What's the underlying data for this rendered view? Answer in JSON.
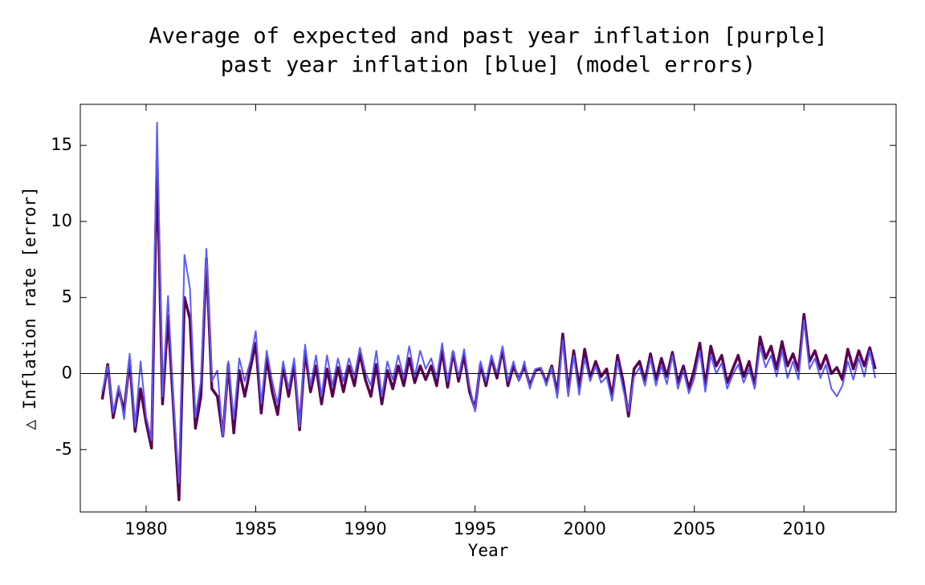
{
  "chart_data": {
    "type": "line",
    "title": "Average of expected and past year inflation [purple]",
    "subtitle": "past year inflation [blue] (model errors)",
    "x_label": "Year",
    "y_label": "△ Inflation rate [error]",
    "xlim": [
      1977,
      2014.2
    ],
    "ylim": [
      -9.1,
      17.7
    ],
    "xticks": [
      1980,
      1985,
      1990,
      1995,
      2000,
      2005,
      2010
    ],
    "yticks": [
      -5,
      0,
      5,
      10,
      15
    ],
    "zero_line": true,
    "x": [
      1978,
      1978.25,
      1978.5,
      1978.75,
      1979,
      1979.25,
      1979.5,
      1979.75,
      1980,
      1980.25,
      1980.5,
      1980.75,
      1981,
      1981.25,
      1981.5,
      1981.75,
      1982,
      1982.25,
      1982.5,
      1982.75,
      1983,
      1983.25,
      1983.5,
      1983.75,
      1984,
      1984.25,
      1984.5,
      1984.75,
      1985,
      1985.25,
      1985.5,
      1985.75,
      1986,
      1986.25,
      1986.5,
      1986.75,
      1987,
      1987.25,
      1987.5,
      1987.75,
      1988,
      1988.25,
      1988.5,
      1988.75,
      1989,
      1989.25,
      1989.5,
      1989.75,
      1990,
      1990.25,
      1990.5,
      1990.75,
      1991,
      1991.25,
      1991.5,
      1991.75,
      1992,
      1992.25,
      1992.5,
      1992.75,
      1993,
      1993.25,
      1993.5,
      1993.75,
      1994,
      1994.25,
      1994.5,
      1994.75,
      1995,
      1995.25,
      1995.5,
      1995.75,
      1996,
      1996.25,
      1996.5,
      1996.75,
      1997,
      1997.25,
      1997.5,
      1997.75,
      1998,
      1998.25,
      1998.5,
      1998.75,
      1999,
      1999.25,
      1999.5,
      1999.75,
      2000,
      2000.25,
      2000.5,
      2000.75,
      2001,
      2001.25,
      2001.5,
      2001.75,
      2002,
      2002.25,
      2002.5,
      2002.75,
      2003,
      2003.25,
      2003.5,
      2003.75,
      2004,
      2004.25,
      2004.5,
      2004.75,
      2005,
      2005.25,
      2005.5,
      2005.75,
      2006,
      2006.25,
      2006.5,
      2006.75,
      2007,
      2007.25,
      2007.5,
      2007.75,
      2008,
      2008.25,
      2008.5,
      2008.75,
      2009,
      2009.25,
      2009.5,
      2009.75,
      2010,
      2010.25,
      2010.5,
      2010.75,
      2011,
      2011.25,
      2011.5,
      2011.75,
      2012,
      2012.25,
      2012.5,
      2012.75,
      2013,
      2013.25
    ],
    "series": [
      {
        "color": "#5a0050",
        "width": 3.5,
        "values": [
          -1.7,
          0.6,
          -2.9,
          -1.0,
          -2.5,
          0.9,
          -3.8,
          -1.0,
          -3.2,
          -4.9,
          14.0,
          -2.0,
          3.8,
          -2.3,
          -8.3,
          5.0,
          3.6,
          -3.6,
          -1.5,
          7.6,
          -1.0,
          -1.5,
          -4.1,
          0.6,
          -3.9,
          0.2,
          -1.5,
          0.3,
          2.0,
          -2.6,
          1.0,
          -1.2,
          -2.7,
          0.5,
          -1.5,
          0.6,
          -3.7,
          1.5,
          -1.2,
          0.5,
          -2.0,
          0.3,
          -1.5,
          0.4,
          -1.2,
          0.5,
          -0.8,
          1.3,
          -0.4,
          -1.5,
          0.6,
          -2.0,
          0.2,
          -1.0,
          0.5,
          -0.8,
          1.0,
          -0.6,
          0.5,
          -0.4,
          0.5,
          -0.8,
          1.5,
          -0.9,
          1.4,
          -0.5,
          1.2,
          -1.2,
          -2.3,
          0.6,
          -0.8,
          1.0,
          -0.3,
          1.6,
          -0.8,
          0.5,
          -0.4,
          0.5,
          -0.8,
          0.2,
          0.3,
          -0.6,
          0.5,
          -1.3,
          2.6,
          -1.2,
          1.5,
          -0.9,
          1.6,
          -0.3,
          0.8,
          -0.2,
          0.3,
          -1.5,
          1.2,
          -0.5,
          -2.8,
          0.3,
          0.8,
          -0.5,
          1.3,
          -0.4,
          1.0,
          -0.2,
          1.4,
          -0.6,
          0.5,
          -1.0,
          0.3,
          2.0,
          -0.8,
          1.8,
          0.5,
          1.2,
          -0.6,
          0.3,
          1.2,
          -0.2,
          0.8,
          -0.8,
          2.4,
          1.0,
          1.8,
          0.3,
          2.1,
          0.5,
          1.3,
          0.2,
          3.9,
          0.8,
          1.5,
          0.3,
          1.2,
          0.0,
          0.4,
          -0.4,
          1.6,
          0.3,
          1.5,
          0.5,
          1.7,
          0.3
        ]
      },
      {
        "color": "#5a5aff",
        "width": 2,
        "values": [
          -1.2,
          0.5,
          -2.6,
          -0.8,
          -3.0,
          1.3,
          -3.5,
          0.8,
          -2.8,
          -4.4,
          16.5,
          -1.5,
          5.1,
          -1.9,
          -7.2,
          7.8,
          5.6,
          -2.9,
          -0.5,
          8.2,
          -0.5,
          0.2,
          -4.1,
          0.8,
          -3.0,
          1.0,
          -0.5,
          0.8,
          2.8,
          -2.0,
          1.5,
          -0.5,
          -2.0,
          0.8,
          -1.0,
          1.0,
          -3.5,
          1.9,
          -0.8,
          1.2,
          -1.5,
          1.2,
          -0.8,
          1.0,
          -0.5,
          1.0,
          -0.2,
          1.7,
          0.1,
          -0.8,
          1.5,
          -1.5,
          0.8,
          -0.4,
          1.2,
          -0.3,
          1.8,
          -0.2,
          1.5,
          0.3,
          1.0,
          -0.3,
          2.0,
          -0.5,
          1.5,
          -0.2,
          1.6,
          -0.8,
          -2.5,
          0.8,
          -0.5,
          1.2,
          0.0,
          1.8,
          -0.5,
          0.8,
          -0.5,
          0.8,
          -1.0,
          0.3,
          0.4,
          -0.8,
          0.4,
          -1.6,
          2.2,
          -1.5,
          1.2,
          -1.4,
          1.0,
          -0.5,
          0.5,
          -0.6,
          -0.2,
          -1.8,
          0.8,
          -1.0,
          -2.5,
          -0.2,
          0.4,
          -0.8,
          1.0,
          -0.8,
          0.5,
          -0.7,
          1.2,
          -1.0,
          0.2,
          -1.3,
          -0.3,
          1.5,
          -1.2,
          1.2,
          0.0,
          0.7,
          -1.0,
          -0.1,
          0.6,
          -0.6,
          0.3,
          -1.0,
          1.8,
          0.4,
          1.2,
          -0.2,
          1.5,
          -0.3,
          0.8,
          -0.4,
          3.5,
          0.3,
          1.0,
          -0.3,
          0.6,
          -1.0,
          -1.5,
          -0.8,
          0.8,
          -0.4,
          1.0,
          -0.2,
          1.5,
          -0.3
        ]
      }
    ]
  }
}
